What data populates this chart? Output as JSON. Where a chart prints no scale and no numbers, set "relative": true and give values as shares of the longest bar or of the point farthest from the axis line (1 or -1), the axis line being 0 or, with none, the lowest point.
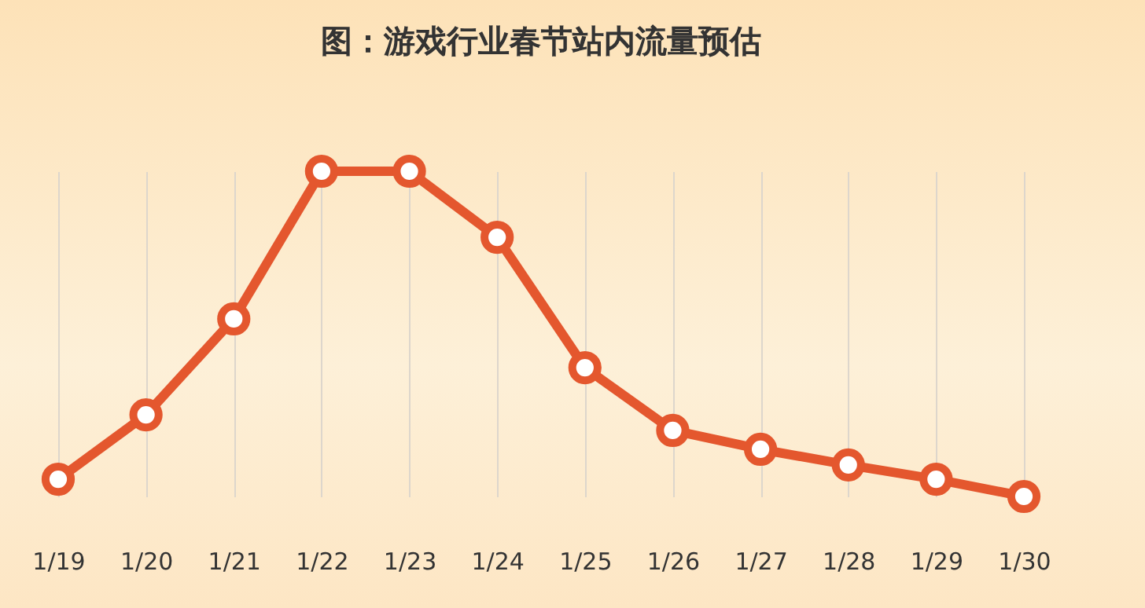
{
  "chart_data": {
    "type": "line",
    "title": "图：游戏行业春节站内流量预估",
    "relative": true,
    "categories": [
      "1/19",
      "1/20",
      "1/21",
      "1/22",
      "1/23",
      "1/24",
      "1/25",
      "1/26",
      "1/27",
      "1/28",
      "1/29",
      "1/30"
    ],
    "series": [
      {
        "color": "#e4572e",
        "values": [
          0.053,
          0.251,
          0.546,
          1,
          1,
          0.797,
          0.396,
          0.203,
          0.145,
          0.097,
          0.053,
          0
        ]
      }
    ],
    "grid": "x",
    "marker": "circle",
    "line_style": "solid"
  }
}
